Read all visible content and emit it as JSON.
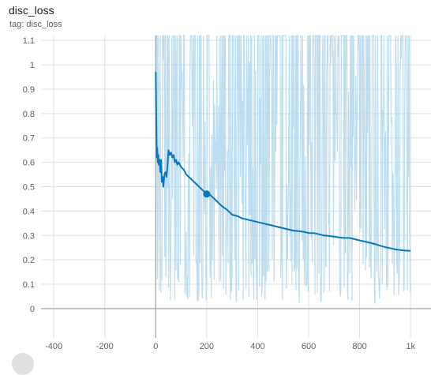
{
  "header": {
    "title": "disc_loss",
    "tag": "tag: disc_loss"
  },
  "chart_data": {
    "type": "line",
    "title": "disc_loss",
    "xlabel": "",
    "ylabel": "",
    "xlim": [
      -450,
      1080
    ],
    "ylim": [
      -0.12,
      1.12
    ],
    "x_ticks": [
      -400,
      -200,
      0,
      200,
      400,
      600,
      800,
      1000
    ],
    "x_tick_labels": [
      "-400",
      "-200",
      "0",
      "200",
      "400",
      "600",
      "800",
      "1k"
    ],
    "y_ticks": [
      0,
      0.1,
      0.2,
      0.3,
      0.4,
      0.5,
      0.6,
      0.7,
      0.8,
      0.9,
      1,
      1.1
    ],
    "y_tick_labels": [
      "0",
      "0.1",
      "0.2",
      "0.3",
      "0.4",
      "0.5",
      "0.6",
      "0.7",
      "0.8",
      "0.9",
      "1",
      "1.1"
    ],
    "grid": true,
    "colors": {
      "smoothed": "#0877bd",
      "raw": "#b3d7ec",
      "grid": "#e0e0e0",
      "axis": "#9e9e9e"
    },
    "raw_range": {
      "x": [
        0,
        1000
      ],
      "y_min": 0.02,
      "y_max": 1.12
    },
    "series": [
      {
        "x": [
          0,
          2,
          4,
          6,
          8,
          10,
          12,
          15,
          18,
          21,
          24,
          27,
          30,
          34,
          38,
          42,
          46,
          50,
          55,
          60,
          65,
          70,
          75,
          80,
          85,
          90,
          100,
          110,
          120,
          130,
          140,
          150,
          160,
          170,
          180,
          190,
          200,
          210,
          220,
          230,
          240,
          250,
          260,
          280,
          300,
          320,
          340,
          360,
          380,
          400,
          420,
          440,
          460,
          480,
          500,
          520,
          540,
          560,
          580,
          600,
          620,
          640,
          660,
          680,
          700,
          720,
          740,
          760,
          780,
          800,
          820,
          840,
          860,
          880,
          900,
          920,
          940,
          960,
          980,
          1000
        ],
        "values": [
          0.97,
          0.8,
          0.62,
          0.66,
          0.6,
          0.63,
          0.59,
          0.61,
          0.56,
          0.61,
          0.52,
          0.54,
          0.5,
          0.55,
          0.56,
          0.54,
          0.58,
          0.65,
          0.63,
          0.64,
          0.62,
          0.63,
          0.6,
          0.61,
          0.59,
          0.6,
          0.58,
          0.57,
          0.55,
          0.54,
          0.53,
          0.52,
          0.51,
          0.5,
          0.49,
          0.48,
          0.475,
          0.47,
          0.46,
          0.45,
          0.44,
          0.43,
          0.42,
          0.405,
          0.385,
          0.38,
          0.37,
          0.365,
          0.36,
          0.355,
          0.35,
          0.345,
          0.34,
          0.335,
          0.33,
          0.325,
          0.32,
          0.318,
          0.315,
          0.31,
          0.31,
          0.305,
          0.3,
          0.298,
          0.295,
          0.292,
          0.29,
          0.29,
          0.285,
          0.28,
          0.275,
          0.27,
          0.265,
          0.258,
          0.252,
          0.248,
          0.243,
          0.24,
          0.238,
          0.237
        ]
      }
    ],
    "marker": {
      "x": 200,
      "y": 0.47
    }
  }
}
